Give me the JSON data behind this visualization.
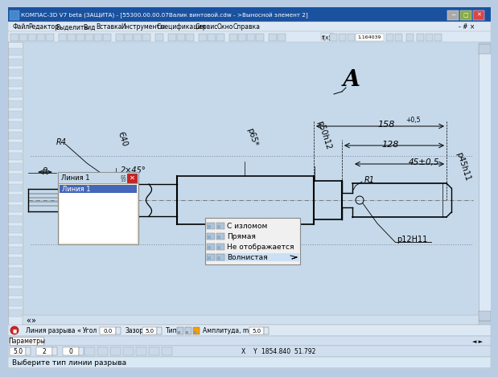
{
  "bg_color": "#b8cce4",
  "title_text": "КОМПАС-3D V7 beta (ЗАЩИТА) - [55300.00.00.07Валик винтовой.cdw - >Выносной элемент 2]",
  "drawing_bg": "#c5d9ea",
  "ui_bg": "#dce9f5",
  "label_A": "А",
  "dim_R4": "R4",
  "dim_phi40": "Є40",
  "dim_phi65": "р65*",
  "dim_phi50h12": "р50h12",
  "dim_phi12H11": "р12H11",
  "dim_phi45h11": "р45h11",
  "dim_2x45": "2×45°",
  "dim_8": "8",
  "dim_R1": "R1",
  "dim_45pm05": "45±0,5",
  "dim_128": "128",
  "dim_158": "158",
  "dim_158_tol": "+0,5",
  "panel_bg": "#f0ead2",
  "panel_title": "Линия 1",
  "option1": "С изломом",
  "option2": "Прямая",
  "option3": "Не отображается",
  "option4": "Волнистая",
  "statusbar_text": "Линия разрыва",
  "statusbar_angle": "Угол 0.0",
  "statusbar_gap": "Зазор 5.0",
  "statusbar_amp": "Амплитуда, max 5.0",
  "bottom_status": "Выберите тип линии разрыва",
  "param_tab": "Параметры",
  "menu_items": [
    "Файл",
    "Редактор",
    "Выделить",
    "Вид",
    "Вставка",
    "Инструменты",
    "Спецификация",
    "Сервис",
    "Окно",
    "Справка"
  ]
}
